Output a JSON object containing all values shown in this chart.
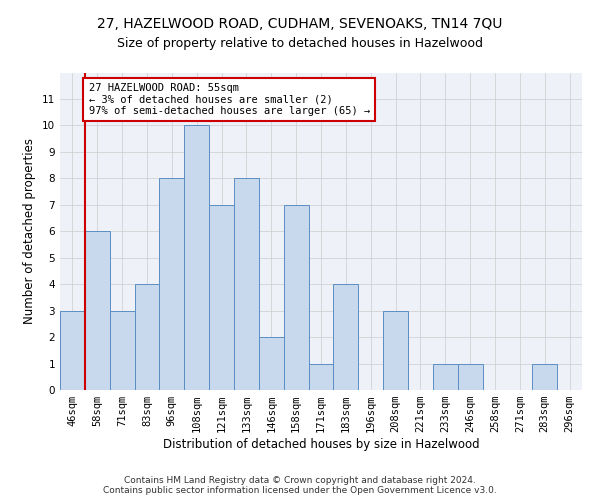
{
  "title": "27, HAZELWOOD ROAD, CUDHAM, SEVENOAKS, TN14 7QU",
  "subtitle": "Size of property relative to detached houses in Hazelwood",
  "xlabel": "Distribution of detached houses by size in Hazelwood",
  "ylabel": "Number of detached properties",
  "categories": [
    "46sqm",
    "58sqm",
    "71sqm",
    "83sqm",
    "96sqm",
    "108sqm",
    "121sqm",
    "133sqm",
    "146sqm",
    "158sqm",
    "171sqm",
    "183sqm",
    "196sqm",
    "208sqm",
    "221sqm",
    "233sqm",
    "246sqm",
    "258sqm",
    "271sqm",
    "283sqm",
    "296sqm"
  ],
  "values": [
    3,
    6,
    3,
    4,
    8,
    10,
    7,
    8,
    2,
    7,
    1,
    4,
    0,
    3,
    0,
    1,
    1,
    0,
    0,
    1,
    0
  ],
  "bar_color": "#c9d9ed",
  "bar_edge_color": "#5b8ec4",
  "annotation_text": "27 HAZELWOOD ROAD: 55sqm\n← 3% of detached houses are smaller (2)\n97% of semi-detached houses are larger (65) →",
  "annotation_box_color": "white",
  "annotation_box_edge_color": "#cc0000",
  "vline_color": "#cc0000",
  "ylim": [
    0,
    12
  ],
  "yticks": [
    0,
    1,
    2,
    3,
    4,
    5,
    6,
    7,
    8,
    9,
    10,
    11,
    12
  ],
  "grid_color": "#cccccc",
  "bg_color": "#eef2f8",
  "footer_line1": "Contains HM Land Registry data © Crown copyright and database right 2024.",
  "footer_line2": "Contains public sector information licensed under the Open Government Licence v3.0.",
  "title_fontsize": 10,
  "subtitle_fontsize": 9,
  "xlabel_fontsize": 8.5,
  "ylabel_fontsize": 8.5,
  "tick_fontsize": 7.5,
  "footer_fontsize": 6.5,
  "ann_fontsize": 7.5
}
